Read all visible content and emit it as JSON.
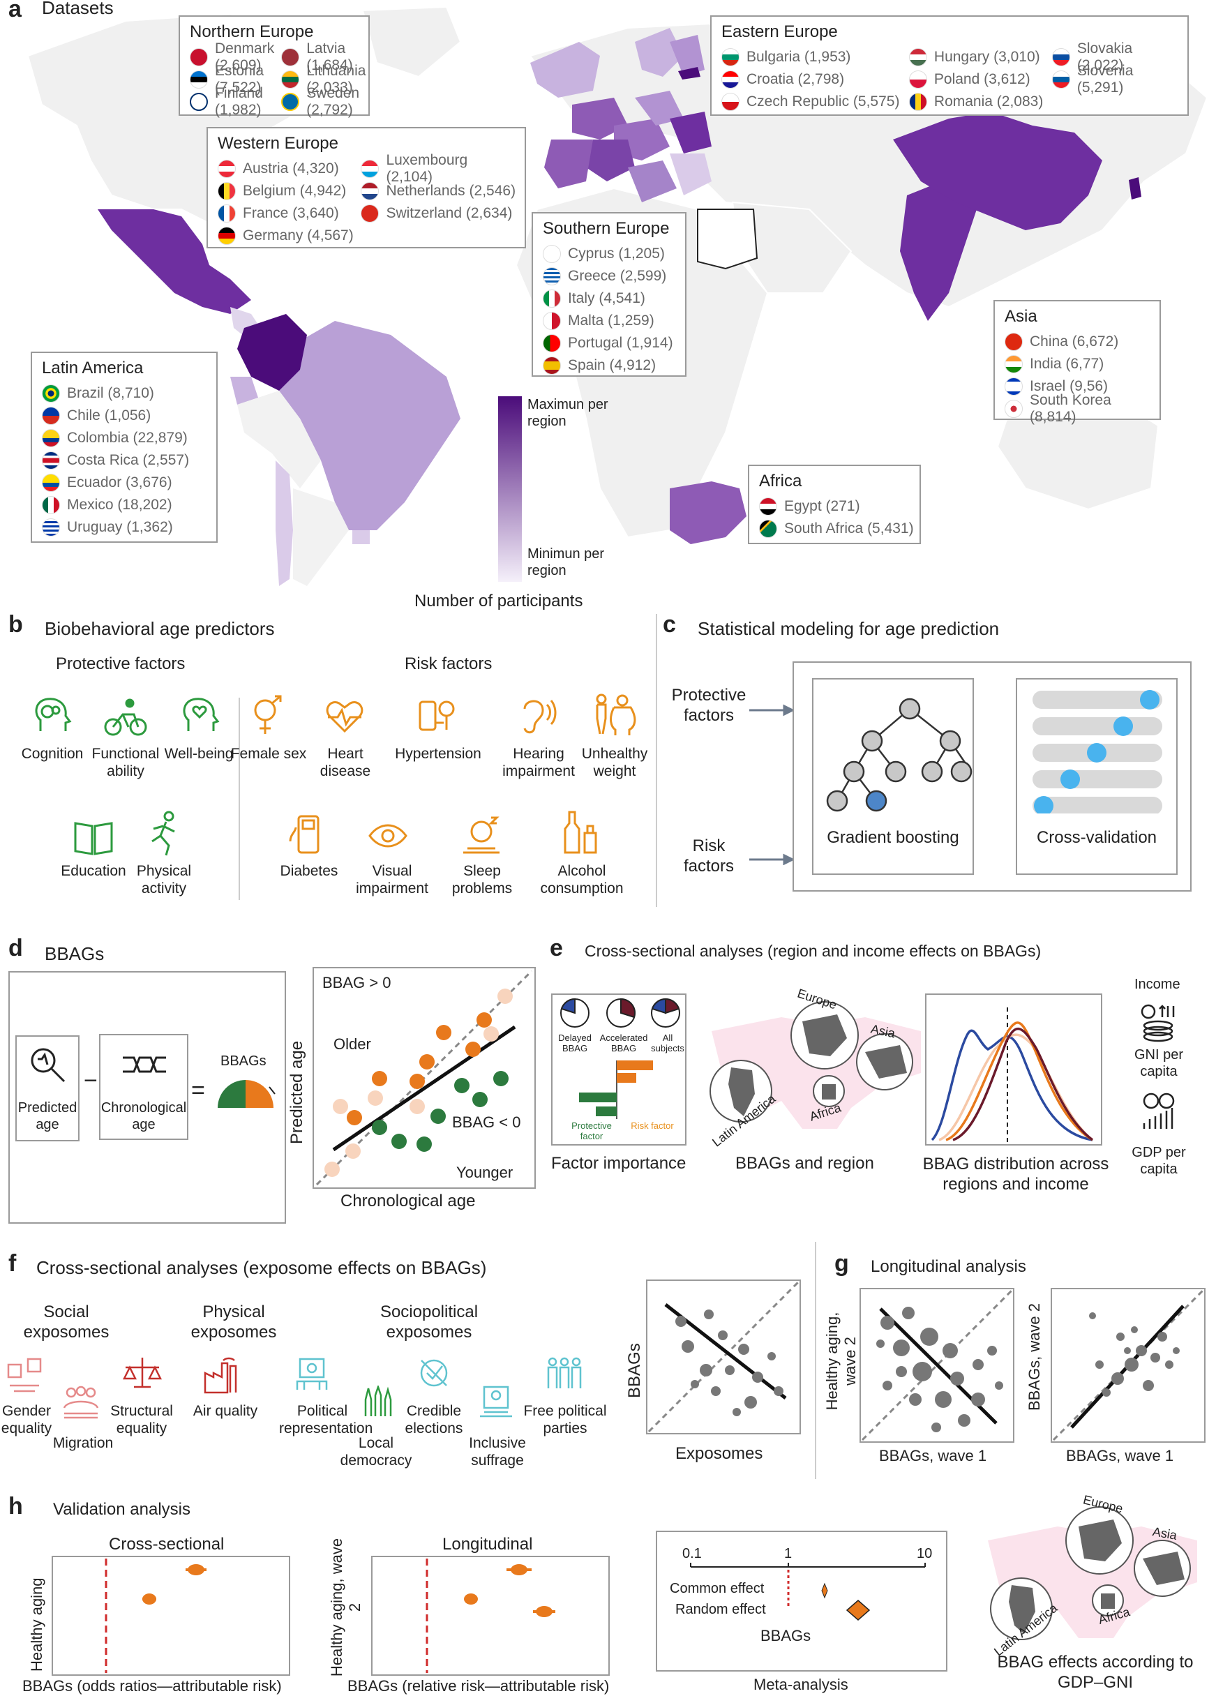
{
  "panel_a": {
    "label": "a",
    "title": "Datasets",
    "regions": [
      {
        "name": "Northern Europe",
        "entries": [
          {
            "country": "Denmark (2,609)",
            "flag": "#c8102e"
          },
          {
            "country": "Estonia (7,522)",
            "flag": "#0072ce"
          },
          {
            "country": "Finland (1,982)",
            "flag": "#002f6c"
          },
          {
            "country": "Latvia (1,684)",
            "flag": "#9e3039"
          },
          {
            "country": "Lithuania (2,033)",
            "flag": "#fdb913"
          },
          {
            "country": "Sweden (2,792)",
            "flag": "#006aa7"
          }
        ]
      },
      {
        "name": "Eastern Europe",
        "entries": [
          {
            "country": "Bulgaria (1,953)",
            "flag": "#00966e"
          },
          {
            "country": "Croatia (2,798)",
            "flag": "#171796"
          },
          {
            "country": "Czech Republic (5,575)",
            "flag": "#11457e"
          },
          {
            "country": "Hungary (3,010)",
            "flag": "#ce2939"
          },
          {
            "country": "Poland (3,612)",
            "flag": "#dc143c"
          },
          {
            "country": "Romania (2,083)",
            "flag": "#fcd116"
          },
          {
            "country": "Slovakia (2,022)",
            "flag": "#0b4ea2"
          },
          {
            "country": "Slovenia (5,291)",
            "flag": "#005da4"
          }
        ]
      },
      {
        "name": "Western Europe",
        "entries": [
          {
            "country": "Austria (4,320)",
            "flag": "#ed2939"
          },
          {
            "country": "Belgium (4,942)",
            "flag": "#fdda24"
          },
          {
            "country": "France (3,640)",
            "flag": "#0055a4"
          },
          {
            "country": "Germany (4,567)",
            "flag": "#dd0000"
          },
          {
            "country": "Luxembourg (2,104)",
            "flag": "#00a1de"
          },
          {
            "country": "Netherlands (2,546)",
            "flag": "#ae1c28"
          },
          {
            "country": "Switzerland (2,634)",
            "flag": "#da291c"
          }
        ]
      },
      {
        "name": "Southern Europe",
        "entries": [
          {
            "country": "Cyprus (1,205)",
            "flag": "#d57800"
          },
          {
            "country": "Greece (2,599)",
            "flag": "#0d5eaf"
          },
          {
            "country": "Italy (4,541)",
            "flag": "#009246"
          },
          {
            "country": "Malta (1,259)",
            "flag": "#cf142b"
          },
          {
            "country": "Portugal (1,914)",
            "flag": "#006600"
          },
          {
            "country": "Spain (4,912)",
            "flag": "#aa151b"
          }
        ]
      },
      {
        "name": "Asia",
        "entries": [
          {
            "country": "China (6,672)",
            "flag": "#de2910"
          },
          {
            "country": "India (6,77)",
            "flag": "#ff9933"
          },
          {
            "country": "Israel (9,56)",
            "flag": "#0038b8"
          },
          {
            "country": "South Korea (8,814)",
            "flag": "#cd2e3a"
          }
        ]
      },
      {
        "name": "Latin America",
        "entries": [
          {
            "country": "Brazil (8,710)",
            "flag": "#009c3b"
          },
          {
            "country": "Chile (1,056)",
            "flag": "#d52b1e"
          },
          {
            "country": "Colombia (22,879)",
            "flag": "#fcd116"
          },
          {
            "country": "Costa Rica (2,557)",
            "flag": "#002b7f"
          },
          {
            "country": "Ecuador (3,676)",
            "flag": "#ffdd00"
          },
          {
            "country": "Mexico (18,202)",
            "flag": "#006847"
          },
          {
            "country": "Uruguay (1,362)",
            "flag": "#0038a8"
          }
        ]
      },
      {
        "name": "Africa",
        "entries": [
          {
            "country": "Egypt (271)",
            "flag": "#ce1126"
          },
          {
            "country": "South Africa (5,431)",
            "flag": "#007a4d"
          }
        ]
      }
    ],
    "legend_max": "Maximun per region",
    "legend_min": "Minimun per region",
    "legend_title": "Number of participants",
    "colors": {
      "dark": "#4b0c7a",
      "mid": "#8e5bb5",
      "light": "#c8b3df"
    }
  },
  "panel_b": {
    "label": "b",
    "title": "Biobehavioral age predictors",
    "protective_title": "Protective factors",
    "risk_title": "Risk factors",
    "protective": [
      "Cognition",
      "Functional ability",
      "Well-being",
      "Education",
      "Physical activity"
    ],
    "risk": [
      "Female sex",
      "Heart disease",
      "Hypertension",
      "Hearing impairment",
      "Unhealthy weight",
      "Diabetes",
      "Visual impairment",
      "Sleep problems",
      "Alcohol consumption"
    ]
  },
  "panel_c": {
    "label": "c",
    "title": "Statistical modeling for age prediction",
    "input_protective": "Protective factors",
    "input_risk": "Risk factors",
    "gb_label": "Gradient boosting",
    "cv_label": "Cross-validation"
  },
  "panel_d": {
    "label": "d",
    "title": "BBAGs",
    "predicted_age": "Predicted age",
    "chronological_age": "Chronological age",
    "minus": "−",
    "equals": "=",
    "bbags": "BBAGs",
    "bbag_pos": "BBAG > 0",
    "bbag_neg": "BBAG < 0",
    "older": "Older",
    "younger": "Younger",
    "y_axis": "Predicted age",
    "x_axis": "Chronological age"
  },
  "panel_e": {
    "label": "e",
    "title": "Cross-sectional analyses (region and income effects on BBAGs)",
    "clock_labels": [
      "Delayed BBAG",
      "Accelerated BBAG",
      "All subjects"
    ],
    "protective_factor": "Protective factor",
    "risk_factor": "Risk factor",
    "factor_importance": "Factor importance",
    "map_labels": [
      "Europe",
      "Asia",
      "Latin America",
      "Africa"
    ],
    "bbags_region": "BBAGs and region",
    "distribution": "BBAG distribution across regions and income",
    "income": "Income",
    "gni": "GNI per capita",
    "gdp": "GDP per capita"
  },
  "panel_f": {
    "label": "f",
    "title": "Cross-sectional analyses (exposome effects on BBAGs)",
    "social": "Social exposomes",
    "physical": "Physical exposomes",
    "sociopolitical": "Sociopolitical exposomes",
    "social_items": [
      "Gender equality",
      "Migration",
      "Structural equality"
    ],
    "physical_items": [
      "Air quality"
    ],
    "socio_items": [
      "Political representation",
      "Local democracy",
      "Credible elections",
      "Inclusive suffrage",
      "Free political parties"
    ],
    "y_axis": "BBAGs",
    "x_axis": "Exposomes"
  },
  "panel_g": {
    "label": "g",
    "title": "Longitudinal analysis",
    "y1": "Healthy aging, wave 2",
    "x1": "BBAGs, wave 1",
    "y2": "BBAGs, wave 2",
    "x2": "BBAGs, wave 1"
  },
  "panel_h": {
    "label": "h",
    "title": "Validation analysis",
    "cross_title": "Cross-sectional",
    "long_title": "Longitudinal",
    "y_cross": "Healthy aging",
    "y_long": "Healthy aging, wave 2",
    "x_cross": "BBAGs (odds ratios—attributable risk)",
    "x_long": "BBAGs (relative risk—attributable risk)",
    "meta_ticks": [
      "0.1",
      "1",
      "10"
    ],
    "common": "Common effect",
    "random": "Random effect",
    "meta_bbags": "BBAGs",
    "meta_title": "Meta-analysis",
    "map_labels": [
      "Europe",
      "Asia",
      "Latin America",
      "Africa"
    ],
    "gdp_title": "BBAG effects according to GDP–GNI"
  }
}
